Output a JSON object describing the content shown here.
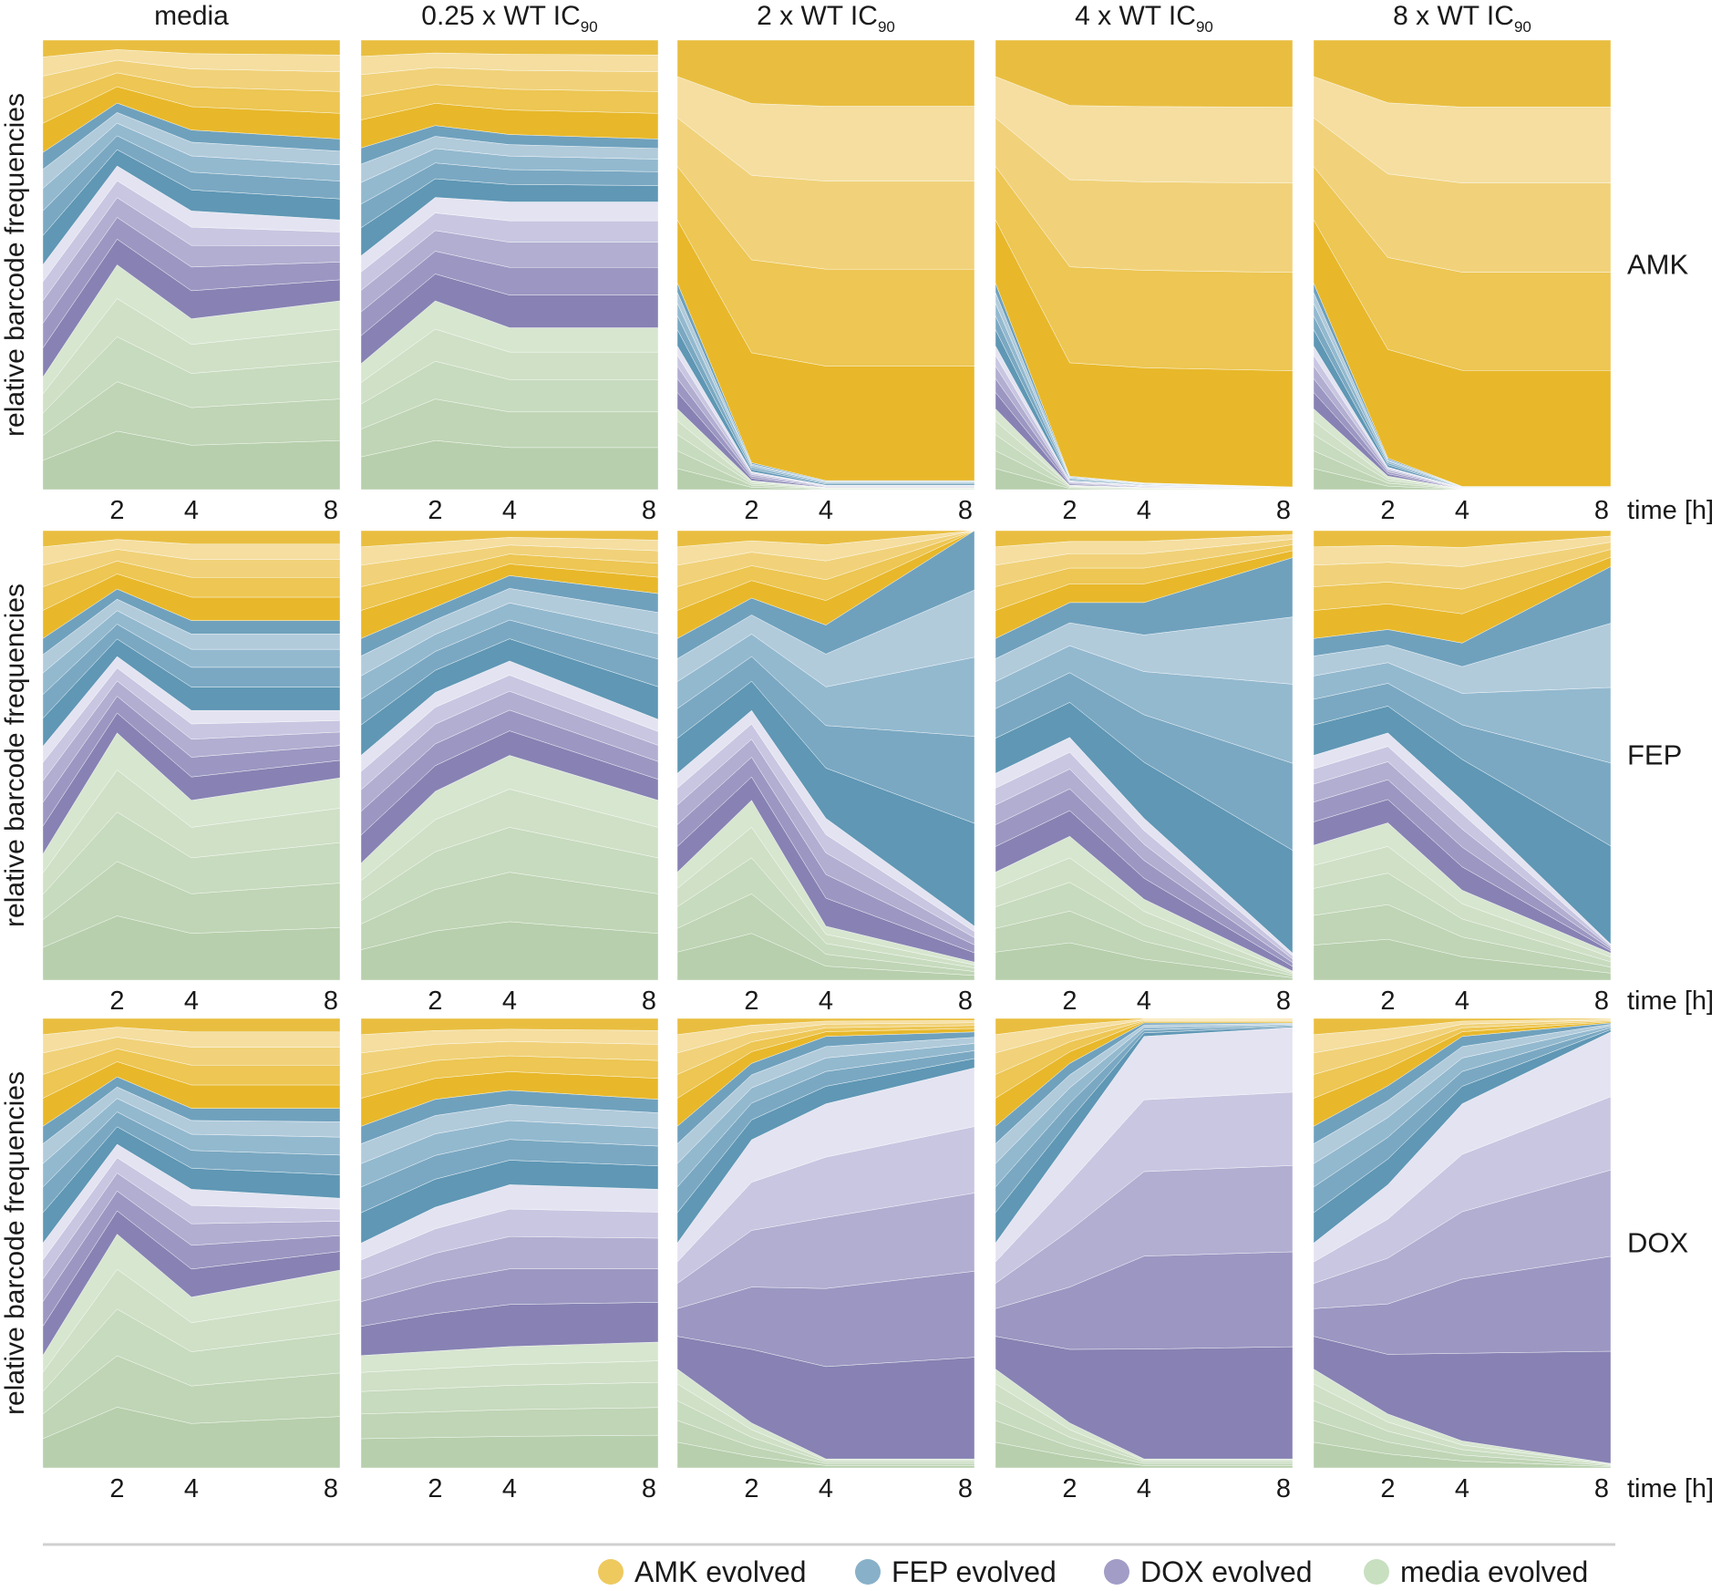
{
  "chart_data": {
    "type": "area",
    "stacking": "100% stacked streamgraph (relative frequencies)",
    "ylabel": "relative barcode frequencies",
    "xlabel": "time [h]",
    "x": [
      0,
      2,
      4,
      8
    ],
    "x_tick_labels": [
      "2",
      "4",
      "8"
    ],
    "conditions": [
      {
        "id": "media",
        "label": "media",
        "sub": ""
      },
      {
        "id": "q",
        "label": "0.25 x WT IC",
        "sub": "90"
      },
      {
        "id": "x2",
        "label": "2 x WT IC",
        "sub": "90"
      },
      {
        "id": "x4",
        "label": "4 x WT IC",
        "sub": "90"
      },
      {
        "id": "x8",
        "label": "8 x WT IC",
        "sub": "90"
      }
    ],
    "treatments": [
      "AMK",
      "FEP",
      "DOX"
    ],
    "legend": [
      {
        "name": "AMK evolved",
        "color": "#eec95e"
      },
      {
        "name": "FEP evolved",
        "color": "#88b1c9"
      },
      {
        "name": "DOX evolved",
        "color": "#a19dc7"
      },
      {
        "name": "media evolved",
        "color": "#c8dfc0"
      }
    ],
    "group_order_bottom_to_top": [
      "media evolved",
      "DOX evolved",
      "FEP evolved",
      "AMK evolved"
    ],
    "group_fraction_stacks_note": "values are approximate fractions of the population at t = 0, 2, 4, 8 h",
    "panels": [
      {
        "row": "AMK",
        "condition": "media",
        "groups": {
          "media": [
            0.25,
            0.5,
            0.38,
            0.42
          ],
          "dox": [
            0.25,
            0.22,
            0.24,
            0.18
          ],
          "fep": [
            0.25,
            0.14,
            0.18,
            0.18
          ],
          "amk": [
            0.25,
            0.14,
            0.2,
            0.22
          ]
        }
      },
      {
        "row": "AMK",
        "condition": "q",
        "groups": {
          "media": [
            0.28,
            0.42,
            0.36,
            0.36
          ],
          "dox": [
            0.24,
            0.23,
            0.28,
            0.28
          ],
          "fep": [
            0.24,
            0.16,
            0.15,
            0.14
          ],
          "amk": [
            0.24,
            0.19,
            0.21,
            0.22
          ]
        }
      },
      {
        "row": "AMK",
        "condition": "x2",
        "groups": {
          "media": [
            0.18,
            0.02,
            0.005,
            0.005
          ],
          "dox": [
            0.14,
            0.02,
            0.005,
            0.005
          ],
          "fep": [
            0.14,
            0.02,
            0.01,
            0.01
          ],
          "amk": [
            0.54,
            0.94,
            0.98,
            0.98
          ]
        }
      },
      {
        "row": "AMK",
        "condition": "x4",
        "groups": {
          "media": [
            0.18,
            0.01,
            0.005,
            0.002
          ],
          "dox": [
            0.14,
            0.01,
            0.005,
            0.002
          ],
          "fep": [
            0.14,
            0.01,
            0.005,
            0.002
          ],
          "amk": [
            0.54,
            0.97,
            0.985,
            0.994
          ]
        }
      },
      {
        "row": "AMK",
        "condition": "x8",
        "groups": {
          "media": [
            0.18,
            0.03,
            0.002,
            0.002
          ],
          "dox": [
            0.14,
            0.02,
            0.002,
            0.002
          ],
          "fep": [
            0.14,
            0.02,
            0.003,
            0.003
          ],
          "amk": [
            0.54,
            0.93,
            0.993,
            0.993
          ]
        }
      },
      {
        "row": "FEP",
        "condition": "media",
        "groups": {
          "media": [
            0.28,
            0.55,
            0.4,
            0.45
          ],
          "dox": [
            0.24,
            0.17,
            0.2,
            0.15
          ],
          "fep": [
            0.24,
            0.15,
            0.2,
            0.2
          ],
          "amk": [
            0.24,
            0.13,
            0.2,
            0.2
          ]
        }
      },
      {
        "row": "FEP",
        "condition": "q",
        "groups": {
          "media": [
            0.26,
            0.42,
            0.5,
            0.4
          ],
          "dox": [
            0.24,
            0.22,
            0.21,
            0.18
          ],
          "fep": [
            0.26,
            0.19,
            0.19,
            0.28
          ],
          "amk": [
            0.24,
            0.17,
            0.1,
            0.14
          ]
        }
      },
      {
        "row": "FEP",
        "condition": "x2",
        "groups": {
          "media": [
            0.24,
            0.4,
            0.12,
            0.04
          ],
          "dox": [
            0.22,
            0.2,
            0.24,
            0.08
          ],
          "fep": [
            0.3,
            0.25,
            0.43,
            0.88
          ],
          "amk": [
            0.24,
            0.15,
            0.21,
            0.0
          ]
        }
      },
      {
        "row": "FEP",
        "condition": "x4",
        "groups": {
          "media": [
            0.24,
            0.32,
            0.18,
            0.02
          ],
          "dox": [
            0.22,
            0.22,
            0.18,
            0.04
          ],
          "fep": [
            0.3,
            0.3,
            0.48,
            0.88
          ],
          "amk": [
            0.24,
            0.16,
            0.16,
            0.06
          ]
        }
      },
      {
        "row": "FEP",
        "condition": "x8",
        "groups": {
          "media": [
            0.3,
            0.35,
            0.2,
            0.06
          ],
          "dox": [
            0.2,
            0.2,
            0.2,
            0.02
          ],
          "fep": [
            0.26,
            0.23,
            0.35,
            0.84
          ],
          "amk": [
            0.24,
            0.22,
            0.25,
            0.08
          ]
        }
      },
      {
        "row": "DOX",
        "condition": "media",
        "groups": {
          "media": [
            0.25,
            0.52,
            0.38,
            0.44
          ],
          "dox": [
            0.25,
            0.2,
            0.24,
            0.16
          ],
          "fep": [
            0.26,
            0.15,
            0.18,
            0.2
          ],
          "amk": [
            0.24,
            0.13,
            0.2,
            0.2
          ]
        }
      },
      {
        "row": "DOX",
        "condition": "q",
        "groups": {
          "media": [
            0.25,
            0.26,
            0.27,
            0.28
          ],
          "dox": [
            0.25,
            0.32,
            0.36,
            0.34
          ],
          "fep": [
            0.26,
            0.24,
            0.21,
            0.2
          ],
          "amk": [
            0.24,
            0.18,
            0.16,
            0.18
          ]
        }
      },
      {
        "row": "DOX",
        "condition": "x2",
        "groups": {
          "media": [
            0.22,
            0.1,
            0.02,
            0.02
          ],
          "dox": [
            0.28,
            0.63,
            0.79,
            0.87
          ],
          "fep": [
            0.26,
            0.17,
            0.15,
            0.08
          ],
          "amk": [
            0.24,
            0.1,
            0.04,
            0.03
          ]
        }
      },
      {
        "row": "DOX",
        "condition": "x4",
        "groups": {
          "media": [
            0.22,
            0.1,
            0.02,
            0.02
          ],
          "dox": [
            0.28,
            0.63,
            0.94,
            0.96
          ],
          "fep": [
            0.26,
            0.17,
            0.03,
            0.01
          ],
          "amk": [
            0.24,
            0.1,
            0.01,
            0.01
          ]
        }
      },
      {
        "row": "DOX",
        "condition": "x8",
        "groups": {
          "media": [
            0.22,
            0.12,
            0.06,
            0.01
          ],
          "dox": [
            0.28,
            0.51,
            0.75,
            0.96
          ],
          "fep": [
            0.26,
            0.22,
            0.15,
            0.02
          ],
          "amk": [
            0.24,
            0.15,
            0.04,
            0.01
          ]
        }
      }
    ]
  }
}
